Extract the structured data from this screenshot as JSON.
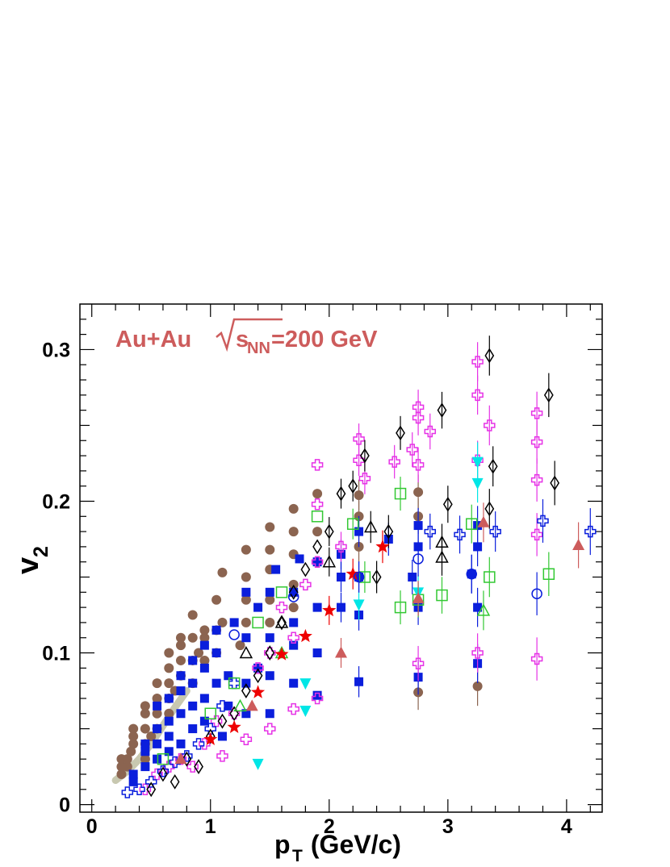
{
  "chart_data": {
    "type": "scatter",
    "title": "",
    "annotation": {
      "prefix": "Au+Au",
      "radical_sub": "NN",
      "suffix": "=200 GeV",
      "color": "#cd5c5c"
    },
    "xlabel": {
      "main": "p",
      "sub": "T",
      "rest": " (GeV/c)"
    },
    "ylabel": {
      "main": "v",
      "sub": "2"
    },
    "xlim": [
      -0.1,
      4.3
    ],
    "ylim": [
      -0.005,
      0.33
    ],
    "x_ticks": [
      {
        "v": 0,
        "label": "0"
      },
      {
        "v": 1,
        "label": "1"
      },
      {
        "v": 2,
        "label": "2"
      },
      {
        "v": 3,
        "label": "3"
      },
      {
        "v": 4,
        "label": "4"
      }
    ],
    "y_ticks": [
      {
        "v": 0,
        "label": "0"
      },
      {
        "v": 0.1,
        "label": "0.1"
      },
      {
        "v": 0.2,
        "label": "0.2"
      },
      {
        "v": 0.3,
        "label": "0.3"
      }
    ],
    "grid": false,
    "band": {
      "color": "#c8c8b0",
      "points": [
        [
          0.2,
          0.016
        ],
        [
          0.3,
          0.022
        ],
        [
          0.4,
          0.03
        ],
        [
          0.5,
          0.04
        ],
        [
          0.6,
          0.052
        ],
        [
          0.7,
          0.064
        ],
        [
          0.8,
          0.075
        ]
      ]
    },
    "series": [
      {
        "marker": "circle-filled",
        "color": "#8b6450",
        "points": [
          [
            0.25,
            0.02
          ],
          [
            0.25,
            0.025
          ],
          [
            0.25,
            0.03
          ],
          [
            0.3,
            0.025
          ],
          [
            0.3,
            0.03
          ],
          [
            0.33,
            0.035
          ],
          [
            0.35,
            0.04
          ],
          [
            0.35,
            0.045
          ],
          [
            0.35,
            0.05
          ],
          [
            0.45,
            0.03
          ],
          [
            0.45,
            0.04
          ],
          [
            0.45,
            0.05
          ],
          [
            0.45,
            0.06
          ],
          [
            0.45,
            0.065
          ],
          [
            0.5,
            0.045
          ],
          [
            0.55,
            0.05
          ],
          [
            0.55,
            0.06
          ],
          [
            0.55,
            0.07
          ],
          [
            0.55,
            0.08
          ],
          [
            0.65,
            0.06
          ],
          [
            0.65,
            0.07
          ],
          [
            0.65,
            0.08
          ],
          [
            0.65,
            0.09
          ],
          [
            0.65,
            0.1
          ],
          [
            0.7,
            0.075
          ],
          [
            0.75,
            0.085
          ],
          [
            0.75,
            0.095
          ],
          [
            0.75,
            0.105
          ],
          [
            0.75,
            0.11
          ],
          [
            0.85,
            0.08
          ],
          [
            0.85,
            0.095
          ],
          [
            0.85,
            0.11
          ],
          [
            0.85,
            0.125
          ],
          [
            0.9,
            0.1
          ],
          [
            0.95,
            0.095
          ],
          [
            0.95,
            0.11
          ],
          [
            0.95,
            0.115
          ],
          [
            1.05,
            0.1
          ],
          [
            1.05,
            0.115
          ],
          [
            1.05,
            0.135
          ],
          [
            1.1,
            0.12
          ],
          [
            1.1,
            0.153
          ],
          [
            1.25,
            0.105
          ],
          [
            1.3,
            0.12
          ],
          [
            1.3,
            0.135
          ],
          [
            1.3,
            0.15
          ],
          [
            1.3,
            0.168
          ],
          [
            1.5,
            0.12
          ],
          [
            1.5,
            0.135
          ],
          [
            1.5,
            0.155
          ],
          [
            1.5,
            0.168
          ],
          [
            1.5,
            0.183
          ],
          [
            1.7,
            0.13
          ],
          [
            1.7,
            0.145
          ],
          [
            1.7,
            0.165
          ],
          [
            1.7,
            0.18
          ],
          [
            1.7,
            0.195
          ],
          [
            1.9,
            0.16
          ],
          [
            1.9,
            0.18
          ],
          [
            1.9,
            0.205
          ],
          [
            2.25,
            0.17
          ],
          [
            2.25,
            0.19
          ],
          [
            2.25,
            0.204
          ],
          [
            2.75,
            0.074
          ],
          [
            2.75,
            0.19
          ],
          [
            2.75,
            0.206
          ],
          [
            3.25,
            0.078
          ]
        ]
      },
      {
        "marker": "square-filled",
        "color": "#0a1edc",
        "points": [
          [
            0.35,
            0.015
          ],
          [
            0.35,
            0.02
          ],
          [
            0.45,
            0.025
          ],
          [
            0.45,
            0.035
          ],
          [
            0.45,
            0.04
          ],
          [
            0.55,
            0.03
          ],
          [
            0.55,
            0.04
          ],
          [
            0.55,
            0.05
          ],
          [
            0.55,
            0.065
          ],
          [
            0.65,
            0.035
          ],
          [
            0.65,
            0.045
          ],
          [
            0.65,
            0.055
          ],
          [
            0.65,
            0.07
          ],
          [
            0.75,
            0.04
          ],
          [
            0.75,
            0.06
          ],
          [
            0.75,
            0.075
          ],
          [
            0.75,
            0.085
          ],
          [
            0.85,
            0.05
          ],
          [
            0.85,
            0.065
          ],
          [
            0.85,
            0.08
          ],
          [
            0.85,
            0.095
          ],
          [
            0.95,
            0.055
          ],
          [
            0.95,
            0.07
          ],
          [
            0.95,
            0.09
          ],
          [
            0.95,
            0.105
          ],
          [
            1.05,
            0.08
          ],
          [
            1.05,
            0.1
          ],
          [
            1.05,
            0.115
          ],
          [
            1.1,
            0.045
          ],
          [
            1.15,
            0.065
          ],
          [
            1.15,
            0.085
          ],
          [
            1.2,
            0.12
          ],
          [
            1.3,
            0.06
          ],
          [
            1.3,
            0.08
          ],
          [
            1.3,
            0.11
          ],
          [
            1.3,
            0.14
          ],
          [
            1.4,
            0.09
          ],
          [
            1.4,
            0.13
          ],
          [
            1.5,
            0.06
          ],
          [
            1.5,
            0.085
          ],
          [
            1.5,
            0.11
          ],
          [
            1.5,
            0.14
          ],
          [
            1.55,
            0.155
          ],
          [
            1.7,
            0.08
          ],
          [
            1.7,
            0.105
          ],
          [
            1.7,
            0.12
          ],
          [
            1.7,
            0.14
          ],
          [
            1.75,
            0.162
          ],
          [
            1.9,
            0.072
          ],
          [
            1.9,
            0.1
          ],
          [
            1.9,
            0.13
          ],
          [
            1.9,
            0.16
          ],
          [
            2.1,
            0.13
          ],
          [
            2.1,
            0.15
          ],
          [
            2.1,
            0.165
          ],
          [
            2.25,
            0.081
          ],
          [
            2.25,
            0.125
          ],
          [
            2.25,
            0.15
          ],
          [
            2.25,
            0.18
          ],
          [
            2.5,
            0.175
          ],
          [
            2.7,
            0.15
          ],
          [
            2.75,
            0.13
          ],
          [
            2.75,
            0.17
          ],
          [
            2.75,
            0.184
          ],
          [
            3.2,
            0.152
          ],
          [
            3.25,
            0.093
          ],
          [
            3.25,
            0.13
          ],
          [
            3.25,
            0.17
          ],
          [
            3.25,
            0.184
          ],
          [
            2.75,
            0.084
          ]
        ]
      },
      {
        "marker": "cross-open",
        "color": "#e632e6",
        "points": [
          [
            0.45,
            0.01
          ],
          [
            0.55,
            0.02
          ],
          [
            0.65,
            0.025
          ],
          [
            0.75,
            0.03
          ],
          [
            0.85,
            0.025
          ],
          [
            0.95,
            0.04
          ],
          [
            1.05,
            0.055
          ],
          [
            1.1,
            0.032
          ],
          [
            1.2,
            0.06
          ],
          [
            1.3,
            0.043
          ],
          [
            1.4,
            0.09
          ],
          [
            1.5,
            0.05
          ],
          [
            1.5,
            0.1
          ],
          [
            1.6,
            0.13
          ],
          [
            1.7,
            0.063
          ],
          [
            1.7,
            0.11
          ],
          [
            1.8,
            0.145
          ],
          [
            1.9,
            0.07
          ],
          [
            1.9,
            0.16
          ],
          [
            2.1,
            0.17
          ],
          [
            1.9,
            0.198
          ],
          [
            1.9,
            0.224
          ],
          [
            2.25,
            0.227
          ],
          [
            2.25,
            0.241
          ],
          [
            2.3,
            0.215
          ],
          [
            2.55,
            0.226
          ],
          [
            2.7,
            0.234
          ],
          [
            2.75,
            0.255
          ],
          [
            2.75,
            0.262
          ],
          [
            2.75,
            0.224
          ],
          [
            2.85,
            0.246
          ],
          [
            2.75,
            0.093
          ],
          [
            3.25,
            0.1
          ],
          [
            3.25,
            0.27
          ],
          [
            3.25,
            0.292
          ],
          [
            3.35,
            0.25
          ],
          [
            3.25,
            0.227
          ],
          [
            3.75,
            0.096
          ],
          [
            3.75,
            0.178
          ],
          [
            3.75,
            0.214
          ],
          [
            3.75,
            0.239
          ],
          [
            3.75,
            0.258
          ]
        ]
      },
      {
        "marker": "cross-open",
        "color": "#0a1edc",
        "points": [
          [
            0.3,
            0.008
          ],
          [
            0.4,
            0.01
          ],
          [
            0.5,
            0.015
          ],
          [
            0.6,
            0.022
          ],
          [
            0.7,
            0.028
          ],
          [
            0.8,
            0.032
          ],
          [
            0.9,
            0.04
          ],
          [
            1.0,
            0.05
          ],
          [
            1.1,
            0.065
          ],
          [
            1.2,
            0.08
          ],
          [
            2.85,
            0.18
          ],
          [
            3.1,
            0.178
          ],
          [
            3.4,
            0.18
          ],
          [
            3.8,
            0.187
          ],
          [
            4.2,
            0.18
          ]
        ]
      },
      {
        "marker": "diamond-open",
        "color": "#000000",
        "points": [
          [
            0.5,
            0.01
          ],
          [
            0.6,
            0.02
          ],
          [
            0.7,
            0.015
          ],
          [
            0.8,
            0.03
          ],
          [
            0.9,
            0.025
          ],
          [
            1.0,
            0.045
          ],
          [
            1.1,
            0.055
          ],
          [
            1.2,
            0.06
          ],
          [
            1.3,
            0.075
          ],
          [
            1.4,
            0.085
          ],
          [
            1.5,
            0.1
          ],
          [
            1.6,
            0.12
          ],
          [
            1.7,
            0.14
          ],
          [
            1.8,
            0.155
          ],
          [
            1.9,
            0.17
          ],
          [
            2.0,
            0.18
          ],
          [
            2.1,
            0.205
          ],
          [
            2.2,
            0.21
          ],
          [
            2.3,
            0.23
          ],
          [
            2.4,
            0.15
          ],
          [
            2.5,
            0.18
          ],
          [
            2.6,
            0.245
          ],
          [
            2.95,
            0.26
          ],
          [
            3.0,
            0.198
          ],
          [
            3.35,
            0.296
          ],
          [
            3.35,
            0.195
          ],
          [
            3.38,
            0.223
          ],
          [
            3.85,
            0.27
          ],
          [
            3.9,
            0.212
          ]
        ]
      },
      {
        "marker": "square-open",
        "color": "#32c832",
        "points": [
          [
            0.6,
            0.03
          ],
          [
            1.0,
            0.06
          ],
          [
            1.2,
            0.08
          ],
          [
            1.4,
            0.12
          ],
          [
            1.6,
            0.14
          ],
          [
            1.9,
            0.19
          ],
          [
            2.2,
            0.185
          ],
          [
            2.3,
            0.15
          ],
          [
            2.6,
            0.205
          ],
          [
            2.6,
            0.13
          ],
          [
            2.75,
            0.135
          ],
          [
            2.95,
            0.138
          ],
          [
            3.2,
            0.185
          ],
          [
            3.35,
            0.15
          ],
          [
            3.85,
            0.152
          ]
        ]
      },
      {
        "marker": "triangle-open",
        "color": "#000000",
        "points": [
          [
            1.3,
            0.1
          ],
          [
            1.6,
            0.12
          ],
          [
            2.0,
            0.16
          ],
          [
            2.35,
            0.183
          ],
          [
            2.95,
            0.163
          ],
          [
            2.95,
            0.173
          ]
        ]
      },
      {
        "marker": "triangle-open",
        "color": "#32c832",
        "points": [
          [
            1.25,
            0.065
          ],
          [
            1.6,
            0.1
          ],
          [
            3.3,
            0.128
          ]
        ]
      },
      {
        "marker": "triangle-down-filled",
        "color": "#00e6e6",
        "points": [
          [
            1.4,
            0.027
          ],
          [
            1.8,
            0.062
          ],
          [
            1.8,
            0.08
          ],
          [
            2.25,
            0.132
          ],
          [
            2.75,
            0.14
          ],
          [
            3.25,
            0.226
          ],
          [
            3.25,
            0.212
          ]
        ]
      },
      {
        "marker": "triangle-filled",
        "color": "#cd5c5c",
        "points": [
          [
            0.75,
            0.03
          ],
          [
            1.35,
            0.065
          ],
          [
            2.1,
            0.1
          ],
          [
            2.75,
            0.136
          ],
          [
            3.3,
            0.186
          ],
          [
            4.1,
            0.171
          ]
        ]
      },
      {
        "marker": "star-filled",
        "color": "#ee0000",
        "points": [
          [
            1.0,
            0.043
          ],
          [
            1.2,
            0.051
          ],
          [
            1.4,
            0.074
          ],
          [
            1.6,
            0.099
          ],
          [
            1.8,
            0.111
          ],
          [
            2.0,
            0.128
          ],
          [
            2.2,
            0.152
          ],
          [
            2.45,
            0.17
          ]
        ]
      },
      {
        "marker": "circle-open",
        "color": "#0a1edc",
        "points": [
          [
            1.2,
            0.112
          ],
          [
            1.7,
            0.137
          ],
          [
            2.25,
            0.15
          ],
          [
            2.75,
            0.162
          ],
          [
            3.2,
            0.152
          ],
          [
            3.75,
            0.139
          ]
        ]
      }
    ]
  }
}
